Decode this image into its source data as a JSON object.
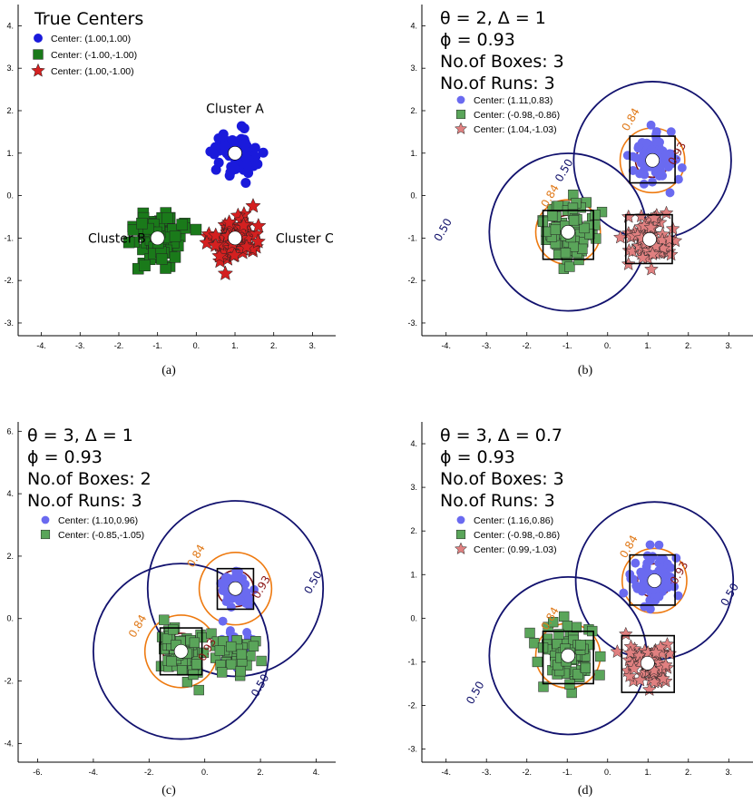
{
  "chart_data": [
    {
      "type": "scatter",
      "caption": "(a)",
      "title_lines": [
        "True Centers"
      ],
      "xlim": [
        -4.6,
        3.6
      ],
      "ylim": [
        -3.3,
        4.5
      ],
      "xticks": [
        -4,
        -3,
        -2,
        -1,
        0,
        1,
        2,
        3
      ],
      "yticks": [
        -3,
        -2,
        -1,
        0,
        1,
        2,
        3,
        4
      ],
      "xtick_labels": [
        "-4.",
        "-3.",
        "-2.",
        "-1.",
        "0.",
        "1.",
        "2.",
        "3."
      ],
      "ytick_labels": [
        "-3.",
        "-2.",
        "-1.",
        "0.",
        "1.",
        "2.",
        "3.",
        "4."
      ],
      "legend": [
        {
          "marker": "circle",
          "color": "#1a1adb",
          "label": "Center: (1.00,1.00)"
        },
        {
          "marker": "square",
          "color": "#1a7a1a",
          "label": "Center: (-1.00,-1.00)"
        },
        {
          "marker": "star",
          "color": "#d42020",
          "label": "Center: (1.00,-1.00)"
        }
      ],
      "clusters": [
        {
          "name": "Cluster A",
          "marker": "circle",
          "color": "#1a1adb",
          "center": [
            1.0,
            1.0
          ],
          "spread": 0.28,
          "n": 80,
          "label_pos": [
            1.0,
            2.05
          ]
        },
        {
          "name": "Cluster B",
          "marker": "square",
          "color": "#1a7a1a",
          "center": [
            -1.0,
            -1.0
          ],
          "spread": 0.32,
          "n": 80,
          "label_pos": [
            -2.05,
            -1.0
          ]
        },
        {
          "name": "Cluster C",
          "marker": "star",
          "color": "#d42020",
          "center": [
            1.0,
            -1.0
          ],
          "spread": 0.28,
          "n": 80,
          "label_pos": [
            2.8,
            -1.0
          ]
        }
      ],
      "contours": [],
      "boxes": []
    },
    {
      "type": "scatter",
      "caption": "(b)",
      "title_lines": [
        "θ = 2, Δ = 1",
        "ϕ = 0.93",
        "No.of Boxes: 3",
        "No.of Runs: 3"
      ],
      "xlim": [
        -4.6,
        3.6
      ],
      "ylim": [
        -3.3,
        4.5
      ],
      "xticks": [
        -4,
        -3,
        -2,
        -1,
        0,
        1,
        2,
        3
      ],
      "yticks": [
        -3,
        -2,
        -1,
        0,
        1,
        2,
        3,
        4
      ],
      "xtick_labels": [
        "-4.",
        "-3.",
        "-2.",
        "-1.",
        "0.",
        "1.",
        "2.",
        "3."
      ],
      "ytick_labels": [
        "-3.",
        "-2.",
        "-1.",
        "0.",
        "1.",
        "2.",
        "3.",
        "4."
      ],
      "legend": [
        {
          "marker": "circle",
          "color": "#6a6af0",
          "label": "Center: (1.11,0.83)"
        },
        {
          "marker": "square",
          "color": "#5aa55a",
          "label": "Center: (-0.98,-0.86)"
        },
        {
          "marker": "star",
          "color": "#e08080",
          "label": "Center: (1.04,-1.03)"
        }
      ],
      "clusters": [
        {
          "marker": "circle",
          "color": "#6a6af0",
          "center": [
            1.11,
            0.83
          ],
          "spread": 0.28,
          "n": 80
        },
        {
          "marker": "square",
          "color": "#5aa55a",
          "center": [
            -0.98,
            -0.86
          ],
          "spread": 0.32,
          "n": 80
        },
        {
          "marker": "star",
          "color": "#e08080",
          "center": [
            1.04,
            -1.03
          ],
          "spread": 0.28,
          "n": 80
        }
      ],
      "contours": [
        {
          "center": [
            1.11,
            0.83
          ],
          "radii": [
            0.42,
            0.8,
            1.95
          ]
        },
        {
          "center": [
            -0.98,
            -0.86
          ],
          "radii": [
            0.42,
            0.8,
            1.95
          ]
        }
      ],
      "contour_labels": [
        {
          "text": "0.84",
          "x": -1.35,
          "y": -0.05,
          "color": "#e07a1a"
        },
        {
          "text": "0.50",
          "x": -1.0,
          "y": 0.55,
          "color": "#10106a"
        },
        {
          "text": "0.50",
          "x": -4.0,
          "y": -0.85,
          "color": "#10106a"
        },
        {
          "text": "0.84",
          "x": 0.65,
          "y": 1.75,
          "color": "#e07a1a"
        },
        {
          "text": "0.93",
          "x": 1.8,
          "y": 0.95,
          "color": "#8a1515"
        }
      ],
      "boxes": [
        {
          "x0": 0.55,
          "x1": 1.67,
          "y0": 0.3,
          "y1": 1.4
        },
        {
          "x0": -1.6,
          "x1": -0.35,
          "y0": -1.5,
          "y1": -0.35
        },
        {
          "x0": 0.45,
          "x1": 1.6,
          "y0": -1.6,
          "y1": -0.45
        }
      ]
    },
    {
      "type": "scatter",
      "caption": "(c)",
      "title_lines": [
        "θ = 3, Δ = 1",
        "ϕ = 0.93",
        "No.of Boxes: 2",
        "No.of Runs: 3"
      ],
      "xlim": [
        -6.7,
        4.7
      ],
      "ylim": [
        -4.6,
        6.3
      ],
      "xticks": [
        -6,
        -4,
        -2,
        0,
        2,
        4
      ],
      "yticks": [
        -4,
        -2,
        0,
        2,
        4,
        6
      ],
      "xtick_labels": [
        "-6.",
        "-4.",
        "-2.",
        "0.",
        "2.",
        "4."
      ],
      "ytick_labels": [
        "-4.",
        "-2.",
        "0.",
        "2.",
        "4.",
        "6."
      ],
      "legend": [
        {
          "marker": "circle",
          "color": "#6a6af0",
          "label": "Center: (1.10,0.96)"
        },
        {
          "marker": "square",
          "color": "#5aa55a",
          "label": "Center: (-0.85,-1.05)"
        }
      ],
      "clusters": [
        {
          "marker": "circle",
          "color": "#6a6af0",
          "center": [
            1.1,
            0.96
          ],
          "spread": 0.3,
          "n": 70
        },
        {
          "marker": "circle",
          "color": "#6a6af0",
          "center": [
            1.1,
            -1.0
          ],
          "spread": 0.3,
          "n": 45
        },
        {
          "marker": "square",
          "color": "#5aa55a",
          "center": [
            -0.85,
            -1.05
          ],
          "spread": 0.38,
          "n": 80
        },
        {
          "marker": "square",
          "color": "#5aa55a",
          "center": [
            1.0,
            -1.1
          ],
          "spread": 0.35,
          "n": 35
        }
      ],
      "contours": [
        {
          "center": [
            1.1,
            0.96
          ],
          "radii": [
            0.65,
            1.3,
            3.15
          ]
        },
        {
          "center": [
            -0.85,
            -1.05
          ],
          "radii": [
            0.65,
            1.3,
            3.15
          ]
        }
      ],
      "contour_labels": [
        {
          "text": "0.84",
          "x": -2.3,
          "y": -0.3,
          "color": "#e07a1a"
        },
        {
          "text": "0.93",
          "x": 0.2,
          "y": -1.05,
          "color": "#8a1515"
        },
        {
          "text": "0.50",
          "x": 2.1,
          "y": -2.2,
          "color": "#10106a"
        },
        {
          "text": "0.84",
          "x": -0.2,
          "y": 1.95,
          "color": "#e07a1a"
        },
        {
          "text": "0.93",
          "x": 2.15,
          "y": 0.95,
          "color": "#8a1515"
        },
        {
          "text": "0.50",
          "x": 4.0,
          "y": 1.1,
          "color": "#10106a"
        }
      ],
      "boxes": [
        {
          "x0": 0.45,
          "x1": 1.75,
          "y0": 0.3,
          "y1": 1.6
        },
        {
          "x0": -1.6,
          "x1": -0.1,
          "y0": -1.8,
          "y1": -0.3
        }
      ]
    },
    {
      "type": "scatter",
      "caption": "(d)",
      "title_lines": [
        "θ = 3, Δ = 0.7",
        "ϕ = 0.93",
        "No.of Boxes: 3",
        "No.of Runs: 3"
      ],
      "xlim": [
        -4.6,
        3.6
      ],
      "ylim": [
        -3.3,
        4.5
      ],
      "xticks": [
        -4,
        -3,
        -2,
        -1,
        0,
        1,
        2,
        3
      ],
      "yticks": [
        -3,
        -2,
        -1,
        0,
        1,
        2,
        3,
        4
      ],
      "xtick_labels": [
        "-4.",
        "-3.",
        "-2.",
        "-1.",
        "0.",
        "1.",
        "2.",
        "3."
      ],
      "ytick_labels": [
        "-3.",
        "-2.",
        "-1.",
        "0.",
        "1.",
        "2.",
        "3.",
        "4."
      ],
      "legend": [
        {
          "marker": "circle",
          "color": "#6a6af0",
          "label": "Center: (1.16,0.86)"
        },
        {
          "marker": "square",
          "color": "#5aa55a",
          "label": "Center: (-0.98,-0.86)"
        },
        {
          "marker": "star",
          "color": "#e08080",
          "label": "Center: (0.99,-1.03)"
        }
      ],
      "clusters": [
        {
          "marker": "circle",
          "color": "#6a6af0",
          "center": [
            1.16,
            0.86
          ],
          "spread": 0.28,
          "n": 80
        },
        {
          "marker": "square",
          "color": "#5aa55a",
          "center": [
            -0.98,
            -0.86
          ],
          "spread": 0.32,
          "n": 80
        },
        {
          "marker": "star",
          "color": "#e08080",
          "center": [
            0.99,
            -1.03
          ],
          "spread": 0.28,
          "n": 80
        }
      ],
      "contours": [
        {
          "center": [
            1.16,
            0.86
          ],
          "radii": [
            0.42,
            0.8,
            1.95
          ]
        },
        {
          "center": [
            -0.98,
            -0.86
          ],
          "radii": [
            0.42,
            0.8,
            1.95
          ]
        }
      ],
      "contour_labels": [
        {
          "text": "0.84",
          "x": -1.35,
          "y": -0.05,
          "color": "#e07a1a"
        },
        {
          "text": "0.50",
          "x": -3.2,
          "y": -1.75,
          "color": "#10106a"
        },
        {
          "text": "0.84",
          "x": 0.6,
          "y": 1.6,
          "color": "#e07a1a"
        },
        {
          "text": "0.93",
          "x": 1.85,
          "y": 1.0,
          "color": "#8a1515"
        },
        {
          "text": "0.50",
          "x": 3.1,
          "y": 0.5,
          "color": "#10106a"
        }
      ],
      "boxes": [
        {
          "x0": 0.55,
          "x1": 1.67,
          "y0": 0.3,
          "y1": 1.45
        },
        {
          "x0": -1.6,
          "x1": -0.35,
          "y0": -1.5,
          "y1": -0.3
        },
        {
          "x0": 0.35,
          "x1": 1.65,
          "y0": -1.7,
          "y1": -0.4
        }
      ]
    }
  ],
  "colors": {
    "contour_inner": "#7a0f0f",
    "contour_mid": "#ee7a10",
    "contour_outer": "#12126e"
  }
}
